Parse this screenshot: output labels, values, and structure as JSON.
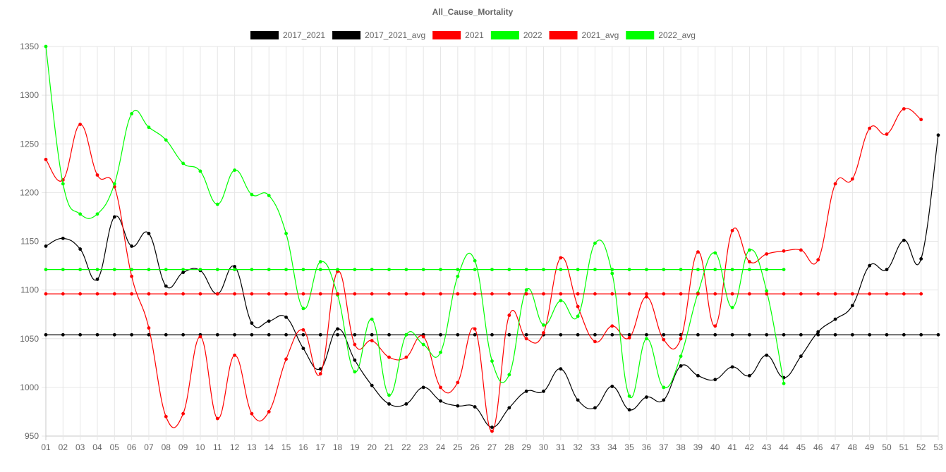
{
  "chart_data": {
    "type": "line",
    "title": "All_Cause_Mortality",
    "xlabel": "",
    "ylabel": "",
    "ylim": [
      950,
      1350
    ],
    "yticks": [
      950,
      1000,
      1050,
      1100,
      1150,
      1200,
      1250,
      1300,
      1350
    ],
    "grid": true,
    "legend_position": "top",
    "categories": [
      "01",
      "02",
      "03",
      "04",
      "05",
      "06",
      "07",
      "08",
      "09",
      "10",
      "11",
      "12",
      "13",
      "14",
      "15",
      "16",
      "17",
      "18",
      "19",
      "20",
      "21",
      "22",
      "23",
      "24",
      "25",
      "26",
      "27",
      "28",
      "29",
      "30",
      "31",
      "32",
      "33",
      "34",
      "35",
      "36",
      "37",
      "38",
      "39",
      "40",
      "41",
      "42",
      "43",
      "44",
      "45",
      "46",
      "47",
      "48",
      "49",
      "50",
      "51",
      "52",
      "53"
    ],
    "series": [
      {
        "name": "2017_2021",
        "color": "#000000",
        "values": [
          1145,
          1153,
          1142,
          1111,
          1175,
          1145,
          1158,
          1104,
          1118,
          1120,
          1096,
          1124,
          1066,
          1068,
          1072,
          1040,
          1019,
          1060,
          1028,
          1002,
          983,
          983,
          1000,
          986,
          981,
          980,
          959,
          979,
          996,
          996,
          1019,
          987,
          979,
          1001,
          977,
          990,
          987,
          1022,
          1012,
          1008,
          1021,
          1012,
          1033,
          1010,
          1032,
          1057,
          1070,
          1084,
          1125,
          1121,
          1151,
          1132,
          1259
        ]
      },
      {
        "name": "2017_2021_avg",
        "color": "#000000",
        "values": [
          1054,
          1054,
          1054,
          1054,
          1054,
          1054,
          1054,
          1054,
          1054,
          1054,
          1054,
          1054,
          1054,
          1054,
          1054,
          1054,
          1054,
          1054,
          1054,
          1054,
          1054,
          1054,
          1054,
          1054,
          1054,
          1054,
          1054,
          1054,
          1054,
          1054,
          1054,
          1054,
          1054,
          1054,
          1054,
          1054,
          1054,
          1054,
          1054,
          1054,
          1054,
          1054,
          1054,
          1054,
          1054,
          1054,
          1054,
          1054,
          1054,
          1054,
          1054,
          1054,
          1054
        ]
      },
      {
        "name": "2021",
        "color": "#ff0000",
        "values": [
          1234,
          1213,
          1270,
          1218,
          1206,
          1114,
          1061,
          970,
          973,
          1052,
          968,
          1033,
          973,
          975,
          1029,
          1059,
          1014,
          1119,
          1044,
          1048,
          1031,
          1031,
          1052,
          1000,
          1005,
          1060,
          955,
          1074,
          1050,
          1056,
          1133,
          1083,
          1047,
          1063,
          1051,
          1093,
          1049,
          1050,
          1139,
          1063,
          1161,
          1129,
          1137,
          1140,
          1141,
          1131,
          1209,
          1214,
          1266,
          1260,
          1286,
          1275,
          null
        ]
      },
      {
        "name": "2022",
        "color": "#00ff00",
        "values": [
          1350,
          1209,
          1178,
          1178,
          1209,
          1281,
          1267,
          1254,
          1230,
          1222,
          1188,
          1223,
          1198,
          1197,
          1158,
          1081,
          1129,
          1095,
          1016,
          1070,
          992,
          1054,
          1044,
          1036,
          1114,
          1130,
          1027,
          1013,
          1100,
          1064,
          1089,
          1073,
          1148,
          1117,
          991,
          1050,
          1000,
          1032,
          1097,
          1138,
          1082,
          1141,
          1099,
          1004,
          null,
          null,
          null,
          null,
          null,
          null,
          null,
          null,
          null
        ]
      },
      {
        "name": "2021_avg",
        "color": "#ff0000",
        "values": [
          1096,
          1096,
          1096,
          1096,
          1096,
          1096,
          1096,
          1096,
          1096,
          1096,
          1096,
          1096,
          1096,
          1096,
          1096,
          1096,
          1096,
          1096,
          1096,
          1096,
          1096,
          1096,
          1096,
          1096,
          1096,
          1096,
          1096,
          1096,
          1096,
          1096,
          1096,
          1096,
          1096,
          1096,
          1096,
          1096,
          1096,
          1096,
          1096,
          1096,
          1096,
          1096,
          1096,
          1096,
          1096,
          1096,
          1096,
          1096,
          1096,
          1096,
          1096,
          1096,
          null
        ]
      },
      {
        "name": "2022_avg",
        "color": "#00ff00",
        "values": [
          1121,
          1121,
          1121,
          1121,
          1121,
          1121,
          1121,
          1121,
          1121,
          1121,
          1121,
          1121,
          1121,
          1121,
          1121,
          1121,
          1121,
          1121,
          1121,
          1121,
          1121,
          1121,
          1121,
          1121,
          1121,
          1121,
          1121,
          1121,
          1121,
          1121,
          1121,
          1121,
          1121,
          1121,
          1121,
          1121,
          1121,
          1121,
          1121,
          1121,
          1121,
          1121,
          1121,
          1121,
          null,
          null,
          null,
          null,
          null,
          null,
          null,
          null,
          null
        ]
      }
    ]
  }
}
